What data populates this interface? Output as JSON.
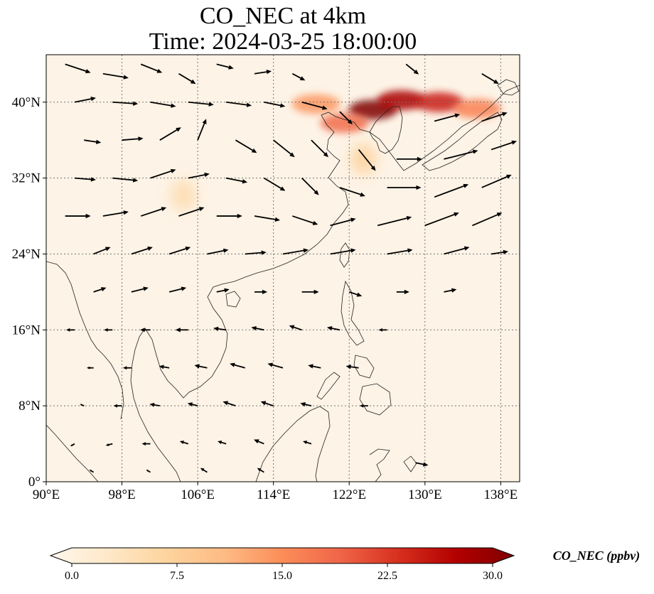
{
  "title": "CO_NEC at 4km",
  "subtitle": "Time: 2024-03-25 18:00:00",
  "variable": "CO_NEC",
  "units": "ppbv",
  "colorbar": {
    "label": "CO_NEC (ppbv)",
    "ticks": [
      "0.0",
      "7.5",
      "15.0",
      "22.5",
      "30.0"
    ],
    "range": [
      0,
      30
    ],
    "extend": "both",
    "colormap": "OrRd",
    "colors": [
      "#fff7ec",
      "#fee8c8",
      "#fdd49e",
      "#fdbb84",
      "#fc8d59",
      "#ef6548",
      "#d7301f",
      "#b30000",
      "#7f0000"
    ]
  },
  "map": {
    "lon_range": [
      90,
      140
    ],
    "lat_range": [
      0,
      45
    ],
    "lon_ticks": [
      "90°E",
      "98°E",
      "106°E",
      "114°E",
      "122°E",
      "130°E",
      "138°E"
    ],
    "lat_ticks": [
      "0°",
      "8°N",
      "16°N",
      "24°N",
      "32°N",
      "40°N"
    ],
    "gridlines": "dotted",
    "background": "#fdf3e6"
  },
  "plumes": [
    {
      "lon": 124.5,
      "lat": 39.2,
      "value": 30
    },
    {
      "lon": 127.5,
      "lat": 40.2,
      "value": 27
    },
    {
      "lon": 131.5,
      "lat": 40.0,
      "value": 24
    },
    {
      "lon": 135.5,
      "lat": 39.3,
      "value": 16
    },
    {
      "lon": 121.5,
      "lat": 37.8,
      "value": 18
    },
    {
      "lon": 118.5,
      "lat": 39.8,
      "value": 14
    },
    {
      "lon": 123.5,
      "lat": 34.0,
      "value": 8
    },
    {
      "lon": 104.5,
      "lat": 30.2,
      "value": 6
    }
  ],
  "wind_vectors": [
    {
      "lon": 92,
      "lat": 44,
      "u": 3,
      "v": -1
    },
    {
      "lon": 96,
      "lat": 43,
      "u": 3,
      "v": -0.5
    },
    {
      "lon": 100,
      "lat": 44,
      "u": 2.5,
      "v": -1
    },
    {
      "lon": 104,
      "lat": 43,
      "u": 2,
      "v": -1.2
    },
    {
      "lon": 108,
      "lat": 44,
      "u": 2,
      "v": -0.5
    },
    {
      "lon": 112,
      "lat": 43,
      "u": 2,
      "v": 0.3
    },
    {
      "lon": 116,
      "lat": 43,
      "u": 1.5,
      "v": -0.8
    },
    {
      "lon": 128,
      "lat": 44,
      "u": 1.5,
      "v": -1.2
    },
    {
      "lon": 136,
      "lat": 43,
      "u": 2,
      "v": -1.2
    },
    {
      "lon": 93,
      "lat": 40,
      "u": 2.5,
      "v": 0.5
    },
    {
      "lon": 97,
      "lat": 40,
      "u": 3,
      "v": -0.2
    },
    {
      "lon": 101,
      "lat": 40,
      "u": 3,
      "v": -0.5
    },
    {
      "lon": 105,
      "lat": 40,
      "u": 3,
      "v": -0.3
    },
    {
      "lon": 109,
      "lat": 40,
      "u": 3,
      "v": -0.4
    },
    {
      "lon": 113,
      "lat": 40,
      "u": 2.5,
      "v": -0.5
    },
    {
      "lon": 117,
      "lat": 40,
      "u": 3,
      "v": -0.8
    },
    {
      "lon": 121,
      "lat": 39,
      "u": 1.5,
      "v": -1.5
    },
    {
      "lon": 131,
      "lat": 38,
      "u": 3,
      "v": 0.8
    },
    {
      "lon": 136,
      "lat": 38,
      "u": 3,
      "v": 1
    },
    {
      "lon": 94,
      "lat": 36,
      "u": 2,
      "v": -0.3
    },
    {
      "lon": 98,
      "lat": 36,
      "u": 2.5,
      "v": 0.2
    },
    {
      "lon": 102,
      "lat": 36,
      "u": 2.5,
      "v": 1.5
    },
    {
      "lon": 106,
      "lat": 36,
      "u": 1,
      "v": 2.5
    },
    {
      "lon": 110,
      "lat": 36,
      "u": 2.5,
      "v": -1.5
    },
    {
      "lon": 114,
      "lat": 36,
      "u": 2.5,
      "v": -2
    },
    {
      "lon": 118,
      "lat": 36,
      "u": 2,
      "v": -2
    },
    {
      "lon": 123,
      "lat": 35,
      "u": 2,
      "v": -2.5
    },
    {
      "lon": 127,
      "lat": 34,
      "u": 3,
      "v": 0
    },
    {
      "lon": 132,
      "lat": 34,
      "u": 4,
      "v": 1
    },
    {
      "lon": 137,
      "lat": 35,
      "u": 3,
      "v": 1
    },
    {
      "lon": 93,
      "lat": 32,
      "u": 2.5,
      "v": -0.2
    },
    {
      "lon": 97,
      "lat": 32,
      "u": 3,
      "v": -0.3
    },
    {
      "lon": 101,
      "lat": 32,
      "u": 3,
      "v": 1
    },
    {
      "lon": 105,
      "lat": 32,
      "u": 2.5,
      "v": 0.5
    },
    {
      "lon": 109,
      "lat": 32,
      "u": 2.5,
      "v": -0.5
    },
    {
      "lon": 113,
      "lat": 32,
      "u": 2.5,
      "v": -1.5
    },
    {
      "lon": 117,
      "lat": 32,
      "u": 2,
      "v": -2
    },
    {
      "lon": 121,
      "lat": 31,
      "u": 3,
      "v": -1
    },
    {
      "lon": 126,
      "lat": 31,
      "u": 4,
      "v": 0
    },
    {
      "lon": 131,
      "lat": 30,
      "u": 4,
      "v": 1.5
    },
    {
      "lon": 136,
      "lat": 31,
      "u": 3.5,
      "v": 1.5
    },
    {
      "lon": 92,
      "lat": 28,
      "u": 3,
      "v": 0
    },
    {
      "lon": 96,
      "lat": 28,
      "u": 3,
      "v": 0.5
    },
    {
      "lon": 100,
      "lat": 28,
      "u": 3,
      "v": 1
    },
    {
      "lon": 104,
      "lat": 28,
      "u": 3,
      "v": 1
    },
    {
      "lon": 108,
      "lat": 28,
      "u": 3,
      "v": 0
    },
    {
      "lon": 112,
      "lat": 28,
      "u": 3,
      "v": -0.5
    },
    {
      "lon": 116,
      "lat": 28,
      "u": 3,
      "v": -1
    },
    {
      "lon": 120,
      "lat": 27,
      "u": 3,
      "v": 0.8
    },
    {
      "lon": 125,
      "lat": 27,
      "u": 4,
      "v": 1
    },
    {
      "lon": 130,
      "lat": 27,
      "u": 4,
      "v": 1.5
    },
    {
      "lon": 135,
      "lat": 27,
      "u": 3.5,
      "v": 1.5
    },
    {
      "lon": 95,
      "lat": 24,
      "u": 2,
      "v": 0.8
    },
    {
      "lon": 99,
      "lat": 24,
      "u": 2.5,
      "v": 0.8
    },
    {
      "lon": 103,
      "lat": 24,
      "u": 2.5,
      "v": 0.8
    },
    {
      "lon": 107,
      "lat": 24,
      "u": 2.5,
      "v": 0.5
    },
    {
      "lon": 111,
      "lat": 24,
      "u": 2.5,
      "v": 0.2
    },
    {
      "lon": 115,
      "lat": 24,
      "u": 3,
      "v": 0.5
    },
    {
      "lon": 120,
      "lat": 24,
      "u": 3,
      "v": 0.5
    },
    {
      "lon": 126,
      "lat": 24,
      "u": 3,
      "v": 0.5
    },
    {
      "lon": 132,
      "lat": 24,
      "u": 3,
      "v": 0.8
    },
    {
      "lon": 137,
      "lat": 24,
      "u": 2,
      "v": 0.3
    },
    {
      "lon": 95,
      "lat": 20,
      "u": 1.5,
      "v": 0.5
    },
    {
      "lon": 99,
      "lat": 20,
      "u": 2,
      "v": 0.5
    },
    {
      "lon": 103,
      "lat": 20,
      "u": 2,
      "v": 0.5
    },
    {
      "lon": 108,
      "lat": 20,
      "u": 1.5,
      "v": 0.3
    },
    {
      "lon": 112,
      "lat": 20,
      "u": 1.5,
      "v": 0
    },
    {
      "lon": 117,
      "lat": 20,
      "u": 2,
      "v": 0
    },
    {
      "lon": 122,
      "lat": 20,
      "u": 1.5,
      "v": -0.5
    },
    {
      "lon": 127,
      "lat": 20,
      "u": 1.5,
      "v": 0
    },
    {
      "lon": 132,
      "lat": 20,
      "u": 1.5,
      "v": 0.3
    },
    {
      "lon": 93,
      "lat": 16,
      "u": -1,
      "v": 0
    },
    {
      "lon": 97,
      "lat": 16,
      "u": -1,
      "v": 0
    },
    {
      "lon": 101,
      "lat": 16,
      "u": -1.2,
      "v": 0
    },
    {
      "lon": 105,
      "lat": 16,
      "u": -1.5,
      "v": 0
    },
    {
      "lon": 109,
      "lat": 16,
      "u": -1.5,
      "v": 0.2
    },
    {
      "lon": 113,
      "lat": 16,
      "u": -1.5,
      "v": 0.3
    },
    {
      "lon": 117,
      "lat": 16,
      "u": -1.5,
      "v": 0.5
    },
    {
      "lon": 121,
      "lat": 16,
      "u": -1.5,
      "v": 0.3
    },
    {
      "lon": 126,
      "lat": 16,
      "u": -1,
      "v": 0
    },
    {
      "lon": 95,
      "lat": 12,
      "u": -0.8,
      "v": 0
    },
    {
      "lon": 99,
      "lat": 12,
      "u": -1,
      "v": 0
    },
    {
      "lon": 103,
      "lat": 12,
      "u": -1.2,
      "v": 0.2
    },
    {
      "lon": 107,
      "lat": 12,
      "u": -1.5,
      "v": 0.3
    },
    {
      "lon": 111,
      "lat": 12,
      "u": -1.8,
      "v": 0.5
    },
    {
      "lon": 115,
      "lat": 12,
      "u": -1.8,
      "v": 0.5
    },
    {
      "lon": 119,
      "lat": 12,
      "u": -1.5,
      "v": 0.3
    },
    {
      "lon": 123,
      "lat": 12,
      "u": -1.5,
      "v": 0.2
    },
    {
      "lon": 94,
      "lat": 8,
      "u": -0.5,
      "v": 0.2
    },
    {
      "lon": 98,
      "lat": 8,
      "u": -1,
      "v": 0
    },
    {
      "lon": 102,
      "lat": 8,
      "u": -1.2,
      "v": 0.2
    },
    {
      "lon": 106,
      "lat": 8,
      "u": -1.2,
      "v": 0.3
    },
    {
      "lon": 110,
      "lat": 8,
      "u": -1.5,
      "v": 0.5
    },
    {
      "lon": 114,
      "lat": 8,
      "u": -1.5,
      "v": 0.5
    },
    {
      "lon": 118,
      "lat": 8,
      "u": -1.3,
      "v": 0.3
    },
    {
      "lon": 124,
      "lat": 8,
      "u": -1,
      "v": 0
    },
    {
      "lon": 93,
      "lat": 4,
      "u": -0.5,
      "v": -0.3
    },
    {
      "lon": 97,
      "lat": 4,
      "u": -0.8,
      "v": -0.2
    },
    {
      "lon": 101,
      "lat": 4,
      "u": -1,
      "v": 0
    },
    {
      "lon": 105,
      "lat": 4,
      "u": -1,
      "v": 0.3
    },
    {
      "lon": 109,
      "lat": 4,
      "u": -1,
      "v": 0.3
    },
    {
      "lon": 113,
      "lat": 4,
      "u": -1.2,
      "v": 0.5
    },
    {
      "lon": 118,
      "lat": 4,
      "u": -1,
      "v": 0.3
    },
    {
      "lon": 129,
      "lat": 2,
      "u": 1.5,
      "v": -0.3
    },
    {
      "lon": 95,
      "lat": 1,
      "u": -0.5,
      "v": 0.3
    },
    {
      "lon": 101,
      "lat": 1,
      "u": -0.5,
      "v": 0.3
    },
    {
      "lon": 107,
      "lat": 1,
      "u": -0.8,
      "v": 0.5
    },
    {
      "lon": 113,
      "lat": 1,
      "u": -0.8,
      "v": 0.5
    }
  ]
}
